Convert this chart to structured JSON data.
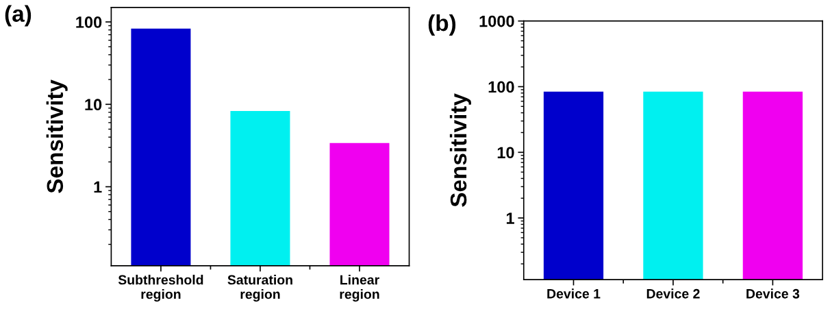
{
  "chart_data": [
    {
      "type": "bar",
      "ylabel": "Sensitivity",
      "annotations": [
        "(a)"
      ],
      "categories": [
        "Subthreshold\nregion",
        "Saturation\nregion",
        "Linear\nregion"
      ],
      "values": [
        83,
        8.3,
        3.4
      ],
      "colors": [
        "#0000cc",
        "#00f0f0",
        "#f000f0"
      ],
      "log": "y",
      "ylim": [
        0.11,
        150
      ],
      "yticks": [
        1,
        10,
        100
      ],
      "grid": false,
      "legend": false
    },
    {
      "type": "bar",
      "ylabel": "Sensitivity",
      "annotations": [
        "(b)"
      ],
      "categories": [
        "Device 1",
        "Device 2",
        "Device 3"
      ],
      "values": [
        84,
        84,
        84
      ],
      "colors": [
        "#0000cc",
        "#00f0f0",
        "#f000f0"
      ],
      "log": "y",
      "ylim": [
        0.115,
        1000
      ],
      "yticks": [
        1,
        10,
        100,
        1000
      ],
      "grid": false,
      "legend": false
    }
  ]
}
